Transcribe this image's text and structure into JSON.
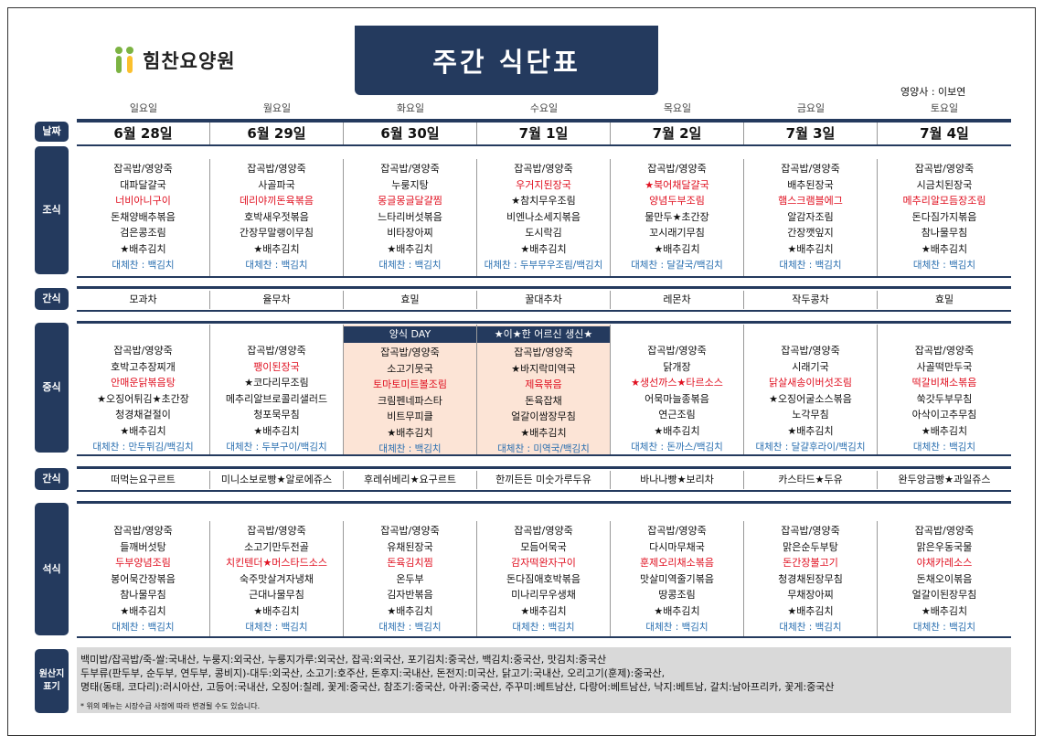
{
  "logo": {
    "text": "힘찬요양원"
  },
  "title": "주간 식단표",
  "nutritionist": "영양사 : 이보연",
  "days": [
    "일요일",
    "월요일",
    "화요일",
    "수요일",
    "목요일",
    "금요일",
    "토요일"
  ],
  "dates": [
    "6월 28일",
    "6월 29일",
    "6월 30일",
    "7월 1일",
    "7월 2일",
    "7월 3일",
    "7월 4일"
  ],
  "labels": {
    "date": "날짜",
    "breakfast": "조식",
    "snack1": "간식",
    "lunch": "중식",
    "snack2": "간식",
    "dinner": "석식",
    "origin": "원산지\n표기"
  },
  "breakfast": [
    [
      "잡곡밥/영양죽",
      "대파달걀국",
      "너비아니구이",
      "돈채양배추볶음",
      "검은콩조림",
      "★배추김치",
      "대체찬 : 백김치"
    ],
    [
      "잡곡밥/영양죽",
      "사골파국",
      "데리야끼돈육볶음",
      "호박새우젓볶음",
      "간장무말랭이무침",
      "★배추김치",
      "대체찬 : 백김치"
    ],
    [
      "잡곡밥/영양죽",
      "누룽지탕",
      "몽글몽글달걀찜",
      "느타리버섯볶음",
      "비타장아찌",
      "★배추김치",
      "대체찬 : 백김치"
    ],
    [
      "잡곡밥/영양죽",
      "우거지된장국",
      "★참치무우조림",
      "비엔나소세지볶음",
      "도시락김",
      "★배추김치",
      "대체찬 : 두부무우조림/백김치"
    ],
    [
      "잡곡밥/영양죽",
      "★북어채달걀국",
      "양념두부조림",
      "물만두★초간장",
      "꼬시래기무침",
      "★배추김치",
      "대체찬 : 달걀국/백김치"
    ],
    [
      "잡곡밥/영양죽",
      "배추된장국",
      "햄스크램블에그",
      "알감자조림",
      "간장깻잎지",
      "★배추김치",
      "대체찬 : 백김치"
    ],
    [
      "잡곡밥/영양죽",
      "시금치된장국",
      "메추리알모듬장조림",
      "돈다짐가지볶음",
      "참나물무침",
      "★배추김치",
      "대체찬 : 백김치"
    ]
  ],
  "breakfast_red": [
    2,
    2,
    2,
    -1,
    2,
    2,
    2
  ],
  "breakfast_starblue": [
    -1,
    -1,
    -1,
    1,
    1,
    -1,
    -1
  ],
  "snack1": [
    "모과차",
    "율무차",
    "효밀",
    "꿀대추차",
    "레몬차",
    "작두콩차",
    "효밀"
  ],
  "lunch_headers": [
    "",
    "",
    "양식 DAY",
    "★이★한 어르신 생신★",
    "",
    "",
    ""
  ],
  "lunch": [
    [
      "잡곡밥/영양죽",
      "호박고추장찌개",
      "안매운닭볶음탕",
      "★오징어튀김★초간장",
      "청경채겉절이",
      "★배추김치",
      "대체찬 : 만두튀김/백김치"
    ],
    [
      "잡곡밥/영양죽",
      "팽이된장국",
      "★코다리무조림",
      "메추리알브로콜리샐러드",
      "청포묵무침",
      "★배추김치",
      "대체찬 : 두부구이/백김치"
    ],
    [
      "잡곡밥/영양죽",
      "소고기뭇국",
      "토마토미트볼조림",
      "크림펜네파스타",
      "비트무피클",
      "★배추김치",
      "대체찬 : 백김치"
    ],
    [
      "잡곡밥/영양죽",
      "★바지락미역국",
      "제육볶음",
      "돈육잡채",
      "얼갈이쌈장무침",
      "★배추김치",
      "대체찬 : 미역국/백김치"
    ],
    [
      "잡곡밥/영양죽",
      "닭개장",
      "★생선까스★타르소스",
      "어묵마늘종볶음",
      "연근조림",
      "★배추김치",
      "대체찬 : 돈까스/백김치"
    ],
    [
      "잡곡밥/영양죽",
      "시래기국",
      "닭살새송이버섯조림",
      "★오징어굴소스볶음",
      "노각무침",
      "★배추김치",
      "대체찬 : 달걀후라이/백김치"
    ],
    [
      "잡곡밥/영양죽",
      "사골떡만두국",
      "떡갈비채소볶음",
      "쑥갓두부무침",
      "아삭이고추무침",
      "★배추김치",
      "대체찬 : 백김치"
    ]
  ],
  "lunch_red": [
    2,
    1,
    2,
    2,
    2,
    2,
    2
  ],
  "snack2": [
    "떠먹는요구르트",
    "미니소보로빵★알로에쥬스",
    "후레쉬베리★요구르트",
    "한끼든든 미숫가루두유",
    "바나나빵★보리차",
    "카스타드★두유",
    "완두앙금빵★과일쥬스"
  ],
  "dinner": [
    [
      "잡곡밥/영양죽",
      "들깨버섯탕",
      "두부양념조림",
      "봉어묵간장볶음",
      "참나물무침",
      "★배추김치",
      "대체찬 : 백김치"
    ],
    [
      "잡곡밥/영양죽",
      "소고기만두전골",
      "치킨텐더★머스타드소스",
      "숙주맛살겨자냉채",
      "근대나물무침",
      "★배추김치",
      "대체찬 : 백김치"
    ],
    [
      "잡곡밥/영양죽",
      "유채된장국",
      "돈육김치찜",
      "온두부",
      "김자반볶음",
      "★배추김치",
      "대체찬 : 백김치"
    ],
    [
      "잡곡밥/영양죽",
      "모듬어묵국",
      "감자떡완자구이",
      "돈다짐애호박볶음",
      "미나리무우생채",
      "★배추김치",
      "대체찬 : 백김치"
    ],
    [
      "잡곡밥/영양죽",
      "다시마무채국",
      "훈제오리채소볶음",
      "맛살미역줄기볶음",
      "땅콩조림",
      "★배추김치",
      "대체찬 : 백김치"
    ],
    [
      "잡곡밥/영양죽",
      "맑은순두부탕",
      "돈간장불고기",
      "청경채된장무침",
      "무채장아찌",
      "★배추김치",
      "대체찬 : 백김치"
    ],
    [
      "잡곡밥/영양죽",
      "맑은우동국물",
      "야채카레소스",
      "돈채오이볶음",
      "얼갈이된장무침",
      "★배추김치",
      "대체찬 : 백김치"
    ]
  ],
  "origin": {
    "line1": "백미밥/잡곡밥/죽-쌀:국내산, 누룽지:외국산, 누룽지가루:외국산, 잡곡:외국산, 포기김치:중국산, 백김치:중국산, 맛김치:중국산",
    "line2": "두부류(판두부, 순두부, 연두부, 콩비지)-대두:외국산, 소고기:호주산, 돈후지:국내산, 돈전지:미국산, 닭고기:국내산, 오리고기(훈제):중국산,",
    "line3": "명태(동태, 코다리):러시아산, 고등어:국내산, 오징어:칠레, 꽃게:중국산, 참조기:중국산, 아귀:중국산, 주꾸미:베트남산, 다랑어:베트남산, 낙지:베트남, 갈치:남아프리카, 꽃게:중국산",
    "note": "* 위의 메뉴는 시장수급 사정에 따라 변경될 수도 있습니다."
  },
  "colors": {
    "navy": "#243a5e",
    "red": "#e01020",
    "blue": "#1a55b0",
    "highlight": "#fce4d6",
    "origin_bg": "#d9d9d9"
  }
}
